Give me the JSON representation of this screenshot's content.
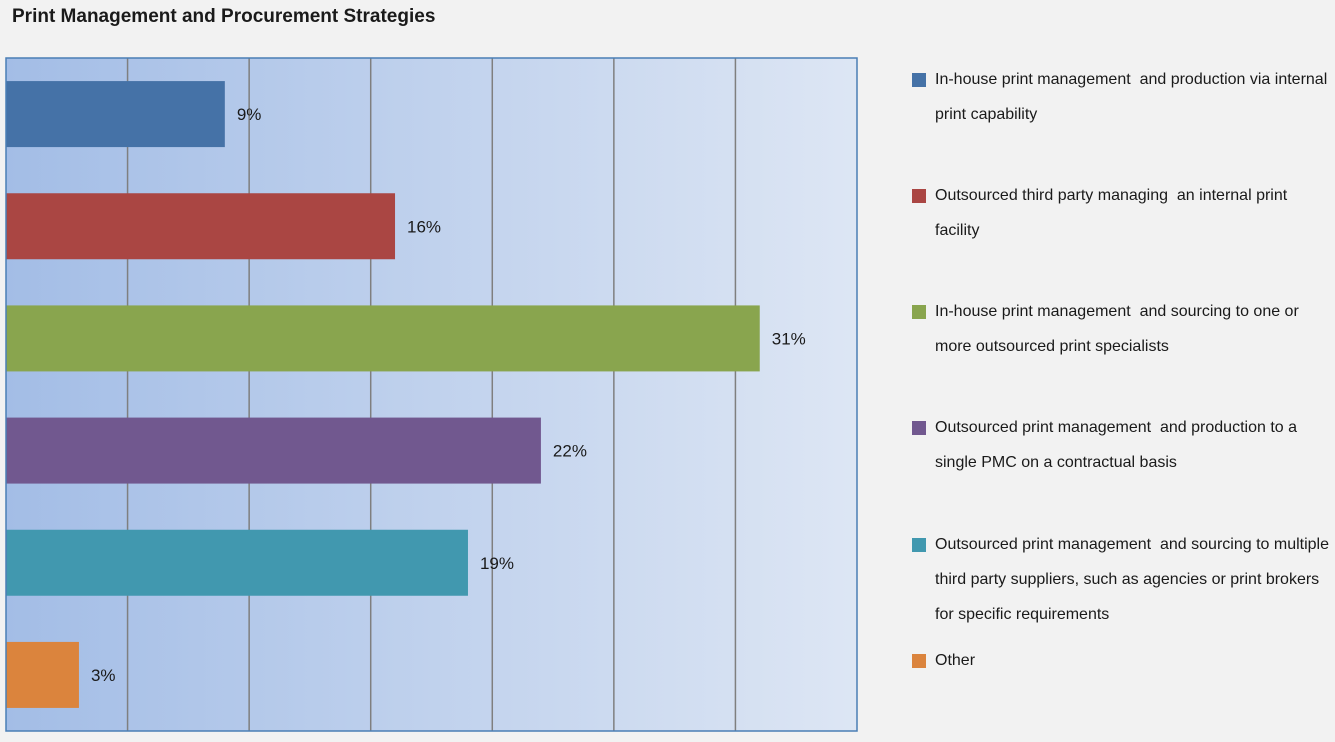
{
  "chart_data": {
    "type": "bar",
    "orientation": "horizontal",
    "title": "Print Management and Procurement Strategies",
    "xlabel": "",
    "ylabel": "",
    "xlim": [
      0,
      35
    ],
    "grid": true,
    "legend_position": "right",
    "categories": [
      "In-house print management  and production via internal  print capability",
      "Outsourced third party managing  an internal print facility",
      "In-house print management  and sourcing to one or more outsourced print specialists",
      "Outsourced print management  and production to a single PMC on a contractual basis",
      "Outsourced print management  and sourcing to multiple third party suppliers, such as agencies or print brokers for specific requirements",
      "Other"
    ],
    "values": [
      9,
      16,
      31,
      22,
      19,
      3
    ],
    "data_labels": [
      "9%",
      "16%",
      "31%",
      "22%",
      "19%",
      "3%"
    ],
    "colors": [
      "#4572a7",
      "#aa4643",
      "#89a54e",
      "#71588f",
      "#4198af",
      "#db843d"
    ]
  }
}
